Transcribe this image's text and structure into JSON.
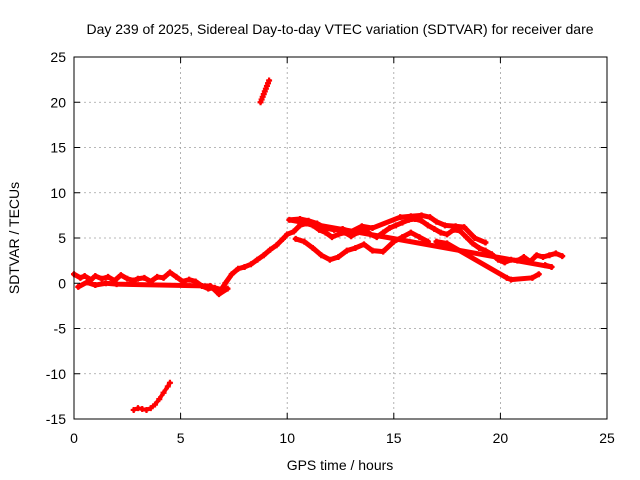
{
  "chart_data": {
    "type": "scatter",
    "title": "Day 239 of 2025, Sidereal Day-to-day VTEC variation (SDTVAR) for receiver dare",
    "xlabel": "GPS time / hours",
    "ylabel": "SDTVAR / TECUs",
    "xlim": [
      0,
      25
    ],
    "ylim": [
      -15,
      25
    ],
    "xticks": [
      "0",
      "5",
      "10",
      "15",
      "20",
      "25"
    ],
    "yticks": [
      "25",
      "20",
      "15",
      "10",
      "5",
      "0",
      "-5",
      "-10",
      "-15"
    ],
    "grid": true,
    "marker": "plus",
    "series": [
      {
        "name": "main",
        "color": "#ff0000",
        "points": [
          [
            0.0,
            1.0
          ],
          [
            0.3,
            0.6
          ],
          [
            0.5,
            0.8
          ],
          [
            0.8,
            0.4
          ],
          [
            1.0,
            0.8
          ],
          [
            1.3,
            0.5
          ],
          [
            1.6,
            0.7
          ],
          [
            1.9,
            0.3
          ],
          [
            2.2,
            0.9
          ],
          [
            2.5,
            0.5
          ],
          [
            2.8,
            0.3
          ],
          [
            3.0,
            0.5
          ],
          [
            3.3,
            0.6
          ],
          [
            3.6,
            0.2
          ],
          [
            3.9,
            0.7
          ],
          [
            4.2,
            0.6
          ],
          [
            4.5,
            1.2
          ],
          [
            4.8,
            0.7
          ],
          [
            5.1,
            0.2
          ],
          [
            5.4,
            0.4
          ],
          [
            5.7,
            0.2
          ],
          [
            6.0,
            -0.3
          ],
          [
            6.3,
            -0.6
          ],
          [
            6.6,
            -0.5
          ],
          [
            6.9,
            -0.7
          ],
          [
            7.1,
            0.0
          ],
          [
            7.4,
            1.0
          ],
          [
            7.7,
            1.6
          ],
          [
            8.0,
            1.8
          ],
          [
            8.3,
            2.1
          ],
          [
            8.6,
            2.6
          ],
          [
            8.9,
            3.1
          ],
          [
            9.2,
            3.7
          ],
          [
            9.5,
            4.2
          ],
          [
            9.8,
            4.9
          ],
          [
            10.0,
            5.4
          ],
          [
            10.3,
            5.7
          ],
          [
            10.6,
            6.4
          ],
          [
            10.9,
            6.6
          ],
          [
            11.2,
            6.4
          ],
          [
            11.5,
            5.9
          ],
          [
            11.8,
            5.6
          ],
          [
            12.1,
            5.1
          ],
          [
            12.4,
            5.4
          ],
          [
            12.7,
            5.6
          ],
          [
            13.0,
            5.2
          ],
          [
            13.3,
            5.6
          ],
          [
            13.6,
            6.1
          ],
          [
            13.9,
            5.4
          ],
          [
            14.2,
            5.1
          ],
          [
            14.5,
            5.6
          ],
          [
            14.8,
            6.1
          ],
          [
            15.1,
            6.4
          ],
          [
            15.4,
            6.7
          ],
          [
            15.7,
            7.0
          ],
          [
            16.0,
            7.1
          ],
          [
            16.3,
            6.9
          ],
          [
            16.6,
            6.4
          ],
          [
            16.9,
            6.0
          ],
          [
            17.2,
            5.6
          ],
          [
            17.5,
            5.4
          ],
          [
            17.8,
            5.9
          ],
          [
            18.1,
            5.8
          ],
          [
            18.4,
            5.1
          ],
          [
            18.7,
            4.4
          ],
          [
            19.0,
            3.9
          ],
          [
            19.3,
            3.6
          ],
          [
            19.6,
            3.2
          ],
          [
            19.9,
            2.6
          ],
          [
            20.2,
            2.3
          ],
          [
            20.5,
            2.6
          ],
          [
            20.8,
            2.5
          ],
          [
            21.1,
            2.9
          ],
          [
            21.4,
            2.4
          ],
          [
            21.7,
            3.1
          ],
          [
            22.0,
            2.9
          ],
          [
            22.3,
            3.1
          ],
          [
            22.6,
            3.3
          ],
          [
            22.9,
            3.0
          ],
          [
            0.2,
            -0.4
          ],
          [
            0.6,
            0.1
          ],
          [
            1.0,
            -0.2
          ],
          [
            1.5,
            0.0
          ],
          [
            2.0,
            -0.1
          ],
          [
            6.4,
            -0.3
          ],
          [
            6.8,
            -1.2
          ],
          [
            7.2,
            -0.6
          ],
          [
            10.4,
            4.9
          ],
          [
            10.8,
            4.6
          ],
          [
            11.2,
            3.9
          ],
          [
            11.6,
            3.1
          ],
          [
            12.0,
            2.6
          ],
          [
            12.4,
            2.9
          ],
          [
            12.8,
            3.6
          ],
          [
            13.2,
            3.9
          ],
          [
            13.6,
            4.3
          ],
          [
            14.0,
            3.6
          ],
          [
            14.5,
            3.5
          ],
          [
            15.0,
            4.6
          ],
          [
            15.4,
            5.1
          ],
          [
            15.8,
            5.6
          ],
          [
            16.2,
            5.1
          ],
          [
            16.6,
            4.6
          ],
          [
            17.0,
            4.6
          ],
          [
            17.5,
            4.4
          ],
          [
            20.3,
            0.6
          ],
          [
            20.5,
            0.4
          ],
          [
            21.5,
            0.6
          ],
          [
            21.8,
            1.0
          ],
          [
            22.1,
            2.0
          ],
          [
            22.4,
            1.8
          ],
          [
            10.1,
            7.0
          ],
          [
            10.6,
            7.1
          ],
          [
            11.0,
            6.9
          ],
          [
            11.4,
            6.6
          ],
          [
            11.8,
            6.1
          ],
          [
            12.2,
            5.9
          ],
          [
            12.6,
            6.0
          ],
          [
            13.0,
            5.7
          ],
          [
            13.5,
            6.3
          ],
          [
            14.0,
            6.1
          ],
          [
            15.3,
            7.3
          ],
          [
            15.8,
            7.4
          ],
          [
            16.3,
            7.5
          ],
          [
            16.7,
            7.3
          ],
          [
            17.0,
            6.8
          ],
          [
            17.4,
            6.4
          ],
          [
            17.9,
            6.3
          ],
          [
            18.3,
            6.2
          ],
          [
            18.8,
            5.0
          ],
          [
            19.3,
            4.5
          ]
        ]
      },
      {
        "name": "segment-high",
        "color": "#ff0000",
        "points": [
          [
            8.75,
            20.0
          ],
          [
            8.8,
            20.3
          ],
          [
            8.85,
            20.6
          ],
          [
            8.9,
            20.9
          ],
          [
            8.95,
            21.2
          ],
          [
            9.0,
            21.5
          ],
          [
            9.05,
            21.8
          ],
          [
            9.1,
            22.1
          ],
          [
            9.15,
            22.4
          ]
        ]
      },
      {
        "name": "segment-low",
        "color": "#ff0000",
        "points": [
          [
            2.8,
            -14.0
          ],
          [
            3.0,
            -13.8
          ],
          [
            3.2,
            -13.9
          ],
          [
            3.4,
            -14.0
          ],
          [
            3.6,
            -13.8
          ],
          [
            3.8,
            -13.4
          ],
          [
            4.0,
            -12.8
          ],
          [
            4.2,
            -12.1
          ],
          [
            4.4,
            -11.4
          ],
          [
            4.5,
            -11.0
          ]
        ]
      }
    ]
  }
}
